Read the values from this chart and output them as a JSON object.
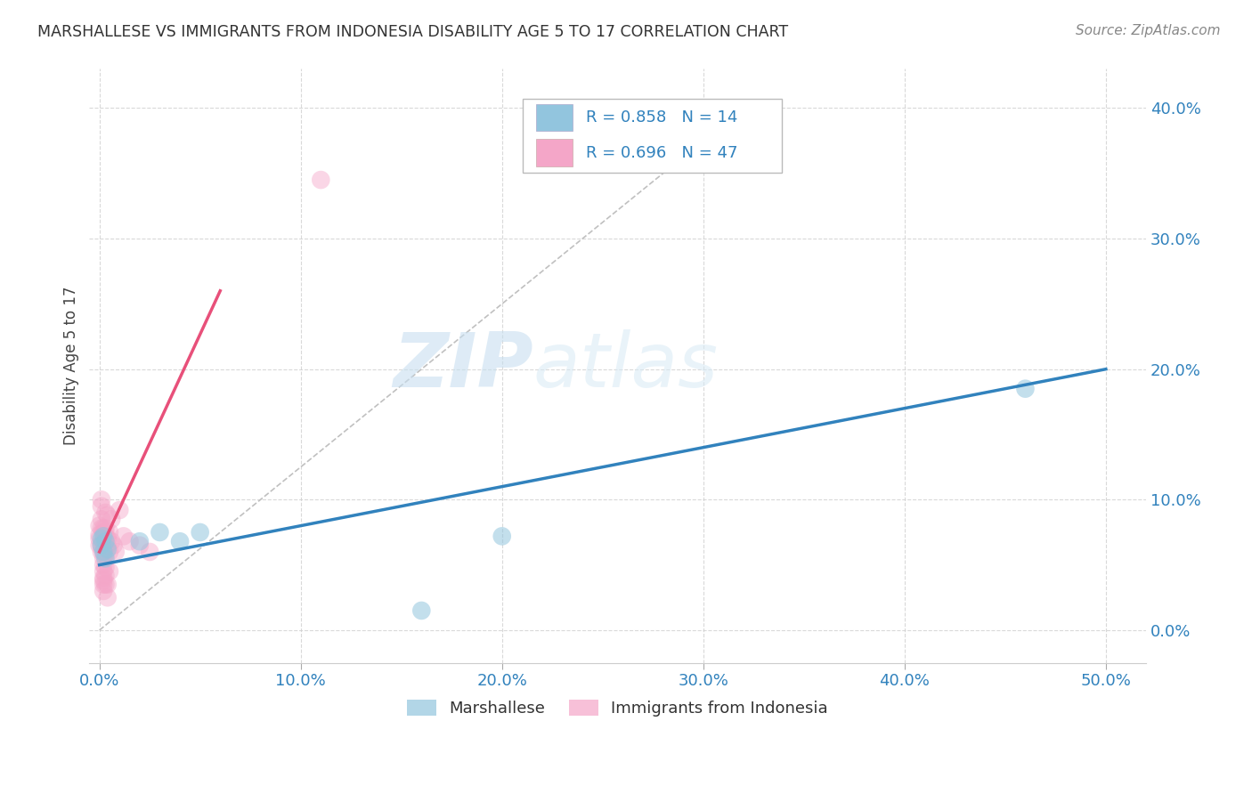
{
  "title": "MARSHALLESE VS IMMIGRANTS FROM INDONESIA DISABILITY AGE 5 TO 17 CORRELATION CHART",
  "source": "Source: ZipAtlas.com",
  "xlabel_vals": [
    0.0,
    0.1,
    0.2,
    0.3,
    0.4,
    0.5
  ],
  "ylabel_vals": [
    0.0,
    0.1,
    0.2,
    0.3,
    0.4
  ],
  "xlim": [
    -0.005,
    0.52
  ],
  "ylim": [
    -0.025,
    0.43
  ],
  "legend_blue_r": "R = 0.858",
  "legend_blue_n": "N = 14",
  "legend_pink_r": "R = 0.696",
  "legend_pink_n": "N = 47",
  "label_blue": "Marshallese",
  "label_pink": "Immigrants from Indonesia",
  "watermark_zip": "ZIP",
  "watermark_atlas": "atlas",
  "blue_color": "#92c5de",
  "pink_color": "#f4a6c8",
  "blue_line_color": "#3182bd",
  "pink_line_color": "#e8507a",
  "blue_scatter": [
    [
      0.001,
      0.065
    ],
    [
      0.001,
      0.07
    ],
    [
      0.002,
      0.072
    ],
    [
      0.002,
      0.06
    ],
    [
      0.003,
      0.068
    ],
    [
      0.003,
      0.055
    ],
    [
      0.004,
      0.062
    ],
    [
      0.02,
      0.068
    ],
    [
      0.03,
      0.075
    ],
    [
      0.04,
      0.068
    ],
    [
      0.05,
      0.075
    ],
    [
      0.16,
      0.015
    ],
    [
      0.2,
      0.072
    ],
    [
      0.46,
      0.185
    ]
  ],
  "pink_scatter": [
    [
      0.0,
      0.07
    ],
    [
      0.0,
      0.073
    ],
    [
      0.0,
      0.065
    ],
    [
      0.0,
      0.08
    ],
    [
      0.001,
      0.085
    ],
    [
      0.001,
      0.06
    ],
    [
      0.001,
      0.065
    ],
    [
      0.001,
      0.095
    ],
    [
      0.001,
      0.1
    ],
    [
      0.001,
      0.078
    ],
    [
      0.002,
      0.075
    ],
    [
      0.002,
      0.078
    ],
    [
      0.002,
      0.06
    ],
    [
      0.002,
      0.055
    ],
    [
      0.002,
      0.05
    ],
    [
      0.002,
      0.045
    ],
    [
      0.002,
      0.04
    ],
    [
      0.002,
      0.038
    ],
    [
      0.002,
      0.035
    ],
    [
      0.002,
      0.03
    ],
    [
      0.003,
      0.078
    ],
    [
      0.003,
      0.072
    ],
    [
      0.003,
      0.065
    ],
    [
      0.003,
      0.058
    ],
    [
      0.003,
      0.048
    ],
    [
      0.003,
      0.042
    ],
    [
      0.003,
      0.035
    ],
    [
      0.003,
      0.09
    ],
    [
      0.003,
      0.075
    ],
    [
      0.004,
      0.065
    ],
    [
      0.004,
      0.035
    ],
    [
      0.004,
      0.025
    ],
    [
      0.004,
      0.088
    ],
    [
      0.004,
      0.07
    ],
    [
      0.005,
      0.06
    ],
    [
      0.005,
      0.045
    ],
    [
      0.005,
      0.075
    ],
    [
      0.006,
      0.085
    ],
    [
      0.006,
      0.068
    ],
    [
      0.007,
      0.065
    ],
    [
      0.008,
      0.06
    ],
    [
      0.01,
      0.092
    ],
    [
      0.012,
      0.072
    ],
    [
      0.015,
      0.068
    ],
    [
      0.02,
      0.065
    ],
    [
      0.025,
      0.06
    ],
    [
      0.11,
      0.345
    ]
  ],
  "blue_line_x": [
    0.0,
    0.5
  ],
  "blue_line_y": [
    0.05,
    0.2
  ],
  "pink_line_x": [
    0.0,
    0.06
  ],
  "pink_line_y": [
    0.06,
    0.26
  ],
  "grey_line_x": [
    0.0,
    0.32
  ],
  "grey_line_y": [
    0.0,
    0.4
  ]
}
